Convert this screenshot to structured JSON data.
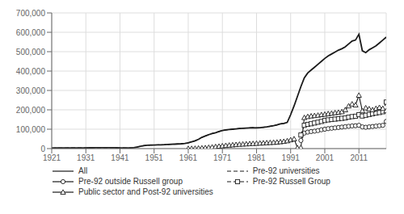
{
  "chart_data": {
    "type": "line",
    "color": "#1a1a1a",
    "grid": true,
    "legend": "bottom",
    "xlim": [
      1921,
      2019
    ],
    "xticks": [
      1921,
      1931,
      1941,
      1951,
      1961,
      1971,
      1981,
      1991,
      2001,
      2011
    ],
    "ylim": [
      0,
      700000
    ],
    "yticks": [
      0,
      {
        "value": 100000,
        "label": "100,000"
      },
      {
        "value": 200000,
        "label": "200,000"
      },
      {
        "value": 300000,
        "label": "300,000"
      },
      {
        "value": 400000,
        "label": "400,000"
      },
      {
        "value": 500000,
        "label": "500,000"
      },
      {
        "value": 600000,
        "label": "600,000"
      },
      {
        "value": 700000,
        "label": "700,000"
      }
    ],
    "series": [
      {
        "name": "All",
        "line_style": "solid",
        "marker": "none",
        "x": [
          1921,
          1922,
          1923,
          1924,
          1925,
          1926,
          1927,
          1928,
          1929,
          1930,
          1931,
          1932,
          1933,
          1934,
          1935,
          1936,
          1937,
          1938,
          1939,
          1940,
          1941,
          1942,
          1943,
          1944,
          1945,
          1946,
          1947,
          1948,
          1949,
          1950,
          1951,
          1952,
          1953,
          1954,
          1955,
          1956,
          1957,
          1958,
          1959,
          1960,
          1961,
          1962,
          1963,
          1964,
          1965,
          1966,
          1967,
          1968,
          1969,
          1970,
          1971,
          1972,
          1973,
          1974,
          1975,
          1976,
          1977,
          1978,
          1979,
          1980,
          1981,
          1982,
          1983,
          1984,
          1985,
          1986,
          1987,
          1988,
          1989,
          1990,
          1991,
          1992,
          1993,
          1994,
          1995,
          1996,
          1997,
          1998,
          1999,
          2000,
          2001,
          2002,
          2003,
          2004,
          2005,
          2006,
          2007,
          2008,
          2009,
          2010,
          2011,
          2012,
          2013,
          2014,
          2015,
          2016,
          2017,
          2018,
          2019
        ],
        "values": [
          3000,
          3100,
          3200,
          3300,
          3400,
          3500,
          3600,
          3700,
          3800,
          3900,
          4000,
          4100,
          4200,
          4300,
          4400,
          4500,
          4600,
          4700,
          4800,
          4200,
          3800,
          3500,
          3200,
          4000,
          5000,
          8000,
          12000,
          15000,
          17000,
          18000,
          18500,
          19000,
          19500,
          20000,
          21000,
          22000,
          23000,
          24000,
          25000,
          27000,
          30000,
          35000,
          40000,
          48000,
          58000,
          65000,
          72000,
          78000,
          82000,
          88000,
          93000,
          96000,
          98000,
          100000,
          102000,
          104000,
          105000,
          106000,
          107000,
          108000,
          107000,
          108000,
          110000,
          112000,
          115000,
          118000,
          122000,
          128000,
          130000,
          135000,
          175000,
          220000,
          270000,
          320000,
          365000,
          390000,
          405000,
          420000,
          435000,
          450000,
          465000,
          478000,
          488000,
          498000,
          508000,
          515000,
          525000,
          540000,
          555000,
          560000,
          590000,
          505000,
          495000,
          510000,
          520000,
          530000,
          545000,
          560000,
          575000
        ]
      },
      {
        "name": "Pre-92 universities",
        "line_style": "dashed",
        "marker": "none",
        "x": [
          1921,
          1922,
          1923,
          1924,
          1925,
          1926,
          1927,
          1928,
          1929,
          1930,
          1931,
          1932,
          1933,
          1934,
          1935,
          1936,
          1937,
          1938,
          1939,
          1940,
          1941,
          1942,
          1943,
          1944,
          1945,
          1946,
          1947,
          1948,
          1949,
          1950,
          1951,
          1952,
          1953,
          1954,
          1955,
          1956,
          1957,
          1958,
          1959,
          1960,
          1961,
          1962,
          1963,
          1964,
          1965,
          1966,
          1967,
          1968,
          1969,
          1970,
          1971,
          1972,
          1973,
          1974,
          1975,
          1976,
          1977,
          1978,
          1979,
          1980,
          1981,
          1982,
          1983,
          1984,
          1985,
          1986,
          1987,
          1988,
          1989,
          1990
        ],
        "values": [
          3000,
          3100,
          3200,
          3300,
          3400,
          3500,
          3600,
          3700,
          3800,
          3900,
          4000,
          4100,
          4200,
          4300,
          4400,
          4500,
          4600,
          4700,
          4800,
          4200,
          3800,
          3500,
          3200,
          4000,
          5000,
          8000,
          12000,
          15000,
          17000,
          18000,
          18500,
          19000,
          19500,
          20000,
          21000,
          22000,
          23000,
          24000,
          25000,
          27000,
          30000,
          35000,
          40000,
          48000,
          58000,
          65000,
          72000,
          78000,
          82000,
          88000,
          93000,
          96000,
          98000,
          100000,
          102000,
          104000,
          105000,
          106000,
          107000,
          108000,
          107000,
          108000,
          110000,
          112000,
          115000,
          118000,
          122000,
          128000,
          130000,
          135000
        ]
      },
      {
        "line_style": "solid",
        "marker": "triangle",
        "x": [
          1961,
          1962,
          1963,
          1964,
          1965,
          1966,
          1967,
          1968,
          1969,
          1970,
          1971,
          1972,
          1973,
          1974,
          1975,
          1976,
          1977,
          1978,
          1979,
          1980,
          1981,
          1982,
          1983,
          1984,
          1985,
          1986,
          1987,
          1988,
          1989,
          1990,
          1991,
          1992,
          1993
        ],
        "values": [
          0,
          500,
          1000,
          2000,
          3000,
          4000,
          6000,
          8000,
          10000,
          12000,
          14000,
          16000,
          17500,
          19000,
          20500,
          22000,
          23000,
          24000,
          25000,
          26000,
          27000,
          28000,
          29000,
          30000,
          31000,
          32000,
          33000,
          35000,
          37000,
          40000,
          45000,
          50000,
          4000
        ]
      },
      {
        "name": "Pre-92 outside Russell group",
        "line_style": "solid",
        "marker": "circle",
        "x": [
          1994,
          1995,
          1996,
          1997,
          1998,
          1999,
          2000,
          2001,
          2002,
          2003,
          2004,
          2005,
          2006,
          2007,
          2008,
          2009,
          2010,
          2011,
          2012,
          2013,
          2014,
          2015,
          2016,
          2017,
          2018,
          2019
        ],
        "values": [
          42000,
          80000,
          85000,
          88000,
          90000,
          93000,
          97000,
          100000,
          103000,
          105000,
          107000,
          109000,
          111000,
          113000,
          115000,
          117000,
          118000,
          120000,
          112000,
          110000,
          112000,
          114000,
          116000,
          118000,
          120000,
          140000
        ]
      },
      {
        "name": "Pre-92 Russell Group",
        "line_style": "dashed",
        "marker": "square",
        "x": [
          1994,
          1995,
          1996,
          1997,
          1998,
          1999,
          2000,
          2001,
          2002,
          2003,
          2004,
          2005,
          2006,
          2007,
          2008,
          2009,
          2010,
          2011,
          2012,
          2013,
          2014,
          2015,
          2016,
          2017,
          2018,
          2019
        ],
        "values": [
          70000,
          120000,
          125000,
          128000,
          132000,
          136000,
          140000,
          145000,
          148000,
          150000,
          152000,
          154000,
          156000,
          158000,
          162000,
          165000,
          167000,
          175000,
          168000,
          172000,
          176000,
          180000,
          183000,
          186000,
          190000,
          240000
        ]
      },
      {
        "name": "Public sector and Post-92 universities",
        "line_style": "solid",
        "marker": "triangle",
        "x": [
          1994,
          1995,
          1996,
          1997,
          1998,
          1999,
          2000,
          2001,
          2002,
          2003,
          2004,
          2005,
          2006,
          2007,
          2008,
          2009,
          2010,
          2011,
          2012,
          2013,
          2014,
          2015,
          2016,
          2017,
          2018,
          2019
        ],
        "values": [
          5000,
          160000,
          165000,
          168000,
          170000,
          172000,
          175000,
          177000,
          180000,
          182000,
          185000,
          187000,
          190000,
          200000,
          220000,
          230000,
          225000,
          275000,
          195000,
          210000,
          205000,
          200000,
          207000,
          212000,
          207000,
          195000
        ]
      }
    ]
  }
}
